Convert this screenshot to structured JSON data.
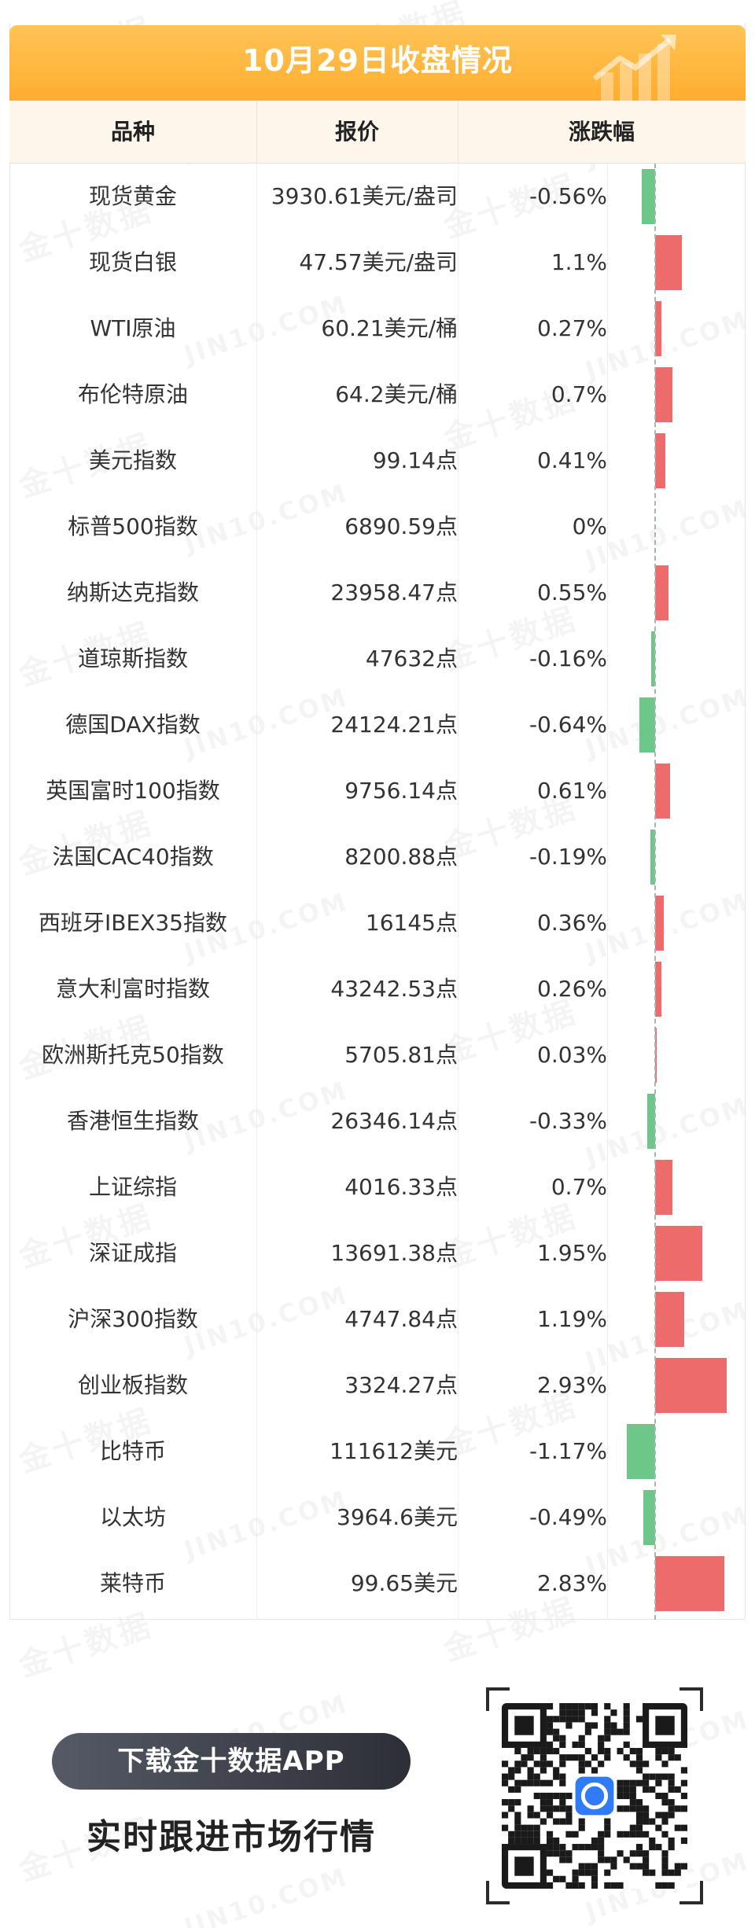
{
  "banner": {
    "title": "10月29日收盘情况"
  },
  "table": {
    "headers": [
      "品种",
      "报价",
      "涨跌幅"
    ],
    "rows": [
      {
        "name": "现货黄金",
        "price": "3930.61美元/盎司",
        "change": "-0.56%",
        "pct": -0.56
      },
      {
        "name": "现货白银",
        "price": "47.57美元/盎司",
        "change": "1.1%",
        "pct": 1.1
      },
      {
        "name": "WTI原油",
        "price": "60.21美元/桶",
        "change": "0.27%",
        "pct": 0.27
      },
      {
        "name": "布伦特原油",
        "price": "64.2美元/桶",
        "change": "0.7%",
        "pct": 0.7
      },
      {
        "name": "美元指数",
        "price": "99.14点",
        "change": "0.41%",
        "pct": 0.41
      },
      {
        "name": "标普500指数",
        "price": "6890.59点",
        "change": "0%",
        "pct": 0
      },
      {
        "name": "纳斯达克指数",
        "price": "23958.47点",
        "change": "0.55%",
        "pct": 0.55
      },
      {
        "name": "道琼斯指数",
        "price": "47632点",
        "change": "-0.16%",
        "pct": -0.16
      },
      {
        "name": "德国DAX指数",
        "price": "24124.21点",
        "change": "-0.64%",
        "pct": -0.64
      },
      {
        "name": "英国富时100指数",
        "price": "9756.14点",
        "change": "0.61%",
        "pct": 0.61
      },
      {
        "name": "法国CAC40指数",
        "price": "8200.88点",
        "change": "-0.19%",
        "pct": -0.19
      },
      {
        "name": "西班牙IBEX35指数",
        "price": "16145点",
        "change": "0.36%",
        "pct": 0.36
      },
      {
        "name": "意大利富时指数",
        "price": "43242.53点",
        "change": "0.26%",
        "pct": 0.26
      },
      {
        "name": "欧洲斯托克50指数",
        "price": "5705.81点",
        "change": "0.03%",
        "pct": 0.03
      },
      {
        "name": "香港恒生指数",
        "price": "26346.14点",
        "change": "-0.33%",
        "pct": -0.33
      },
      {
        "name": "上证综指",
        "price": "4016.33点",
        "change": "0.7%",
        "pct": 0.7
      },
      {
        "name": "深证成指",
        "price": "13691.38点",
        "change": "1.95%",
        "pct": 1.95
      },
      {
        "name": "沪深300指数",
        "price": "4747.84点",
        "change": "1.19%",
        "pct": 1.19
      },
      {
        "name": "创业板指数",
        "price": "3324.27点",
        "change": "2.93%",
        "pct": 2.93
      },
      {
        "name": "比特币",
        "price": "111612美元",
        "change": "-1.17%",
        "pct": -1.17
      },
      {
        "name": "以太坊",
        "price": "3964.6美元",
        "change": "-0.49%",
        "pct": -0.49
      },
      {
        "name": "莱特币",
        "price": "99.65美元",
        "change": "2.83%",
        "pct": 2.83
      }
    ]
  },
  "colors": {
    "up": "#ee6b6b",
    "down": "#6cc788",
    "banner": "#ffb338"
  },
  "watermark": {
    "cn": "金十数据",
    "en": "JIN10.COM"
  },
  "footer": {
    "download_label": "下载金十数据APP",
    "tagline": "实时跟进市场行情"
  }
}
